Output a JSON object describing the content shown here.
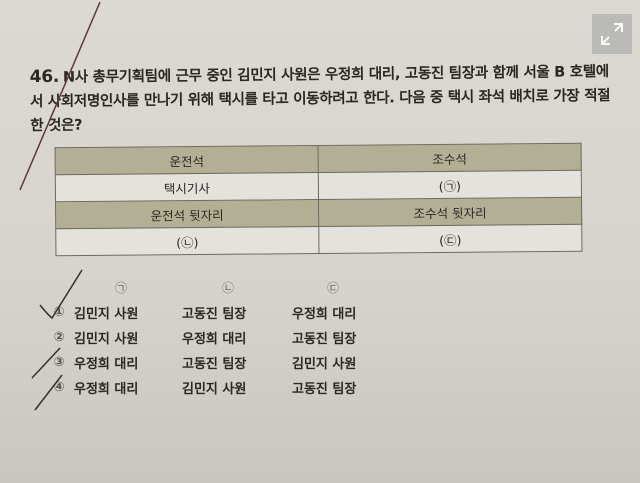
{
  "question": {
    "number": "46.",
    "text": "N사 총무기획팀에 근무 중인 김민지 사원은 우정희 대리, 고동진 팀장과 함께 서울 B 호텔에서 사회저명인사를 만나기 위해 택시를 타고 이동하려고 한다. 다음 중 택시 좌석 배치로 가장 적절한 것은?"
  },
  "seat_table": {
    "rows": [
      [
        "운전석",
        "조수석"
      ],
      [
        "택시기사",
        "(㉠)"
      ],
      [
        "운전석 뒷자리",
        "조수석 뒷자리"
      ],
      [
        "(㉡)",
        "(㉢)"
      ]
    ]
  },
  "options": {
    "headers": [
      "㉠",
      "㉡",
      "㉢"
    ],
    "items": [
      {
        "marker": "①",
        "cells": [
          "김민지 사원",
          "고동진 팀장",
          "우정희 대리"
        ]
      },
      {
        "marker": "②",
        "cells": [
          "김민지 사원",
          "우정희 대리",
          "고동진 팀장"
        ]
      },
      {
        "marker": "③",
        "cells": [
          "우정희 대리",
          "고동진 팀장",
          "김민지 사원"
        ]
      },
      {
        "marker": "④",
        "cells": [
          "우정희 대리",
          "김민지 사원",
          "고동진 팀장"
        ]
      }
    ]
  },
  "icons": {
    "expand": "expand-icon"
  }
}
